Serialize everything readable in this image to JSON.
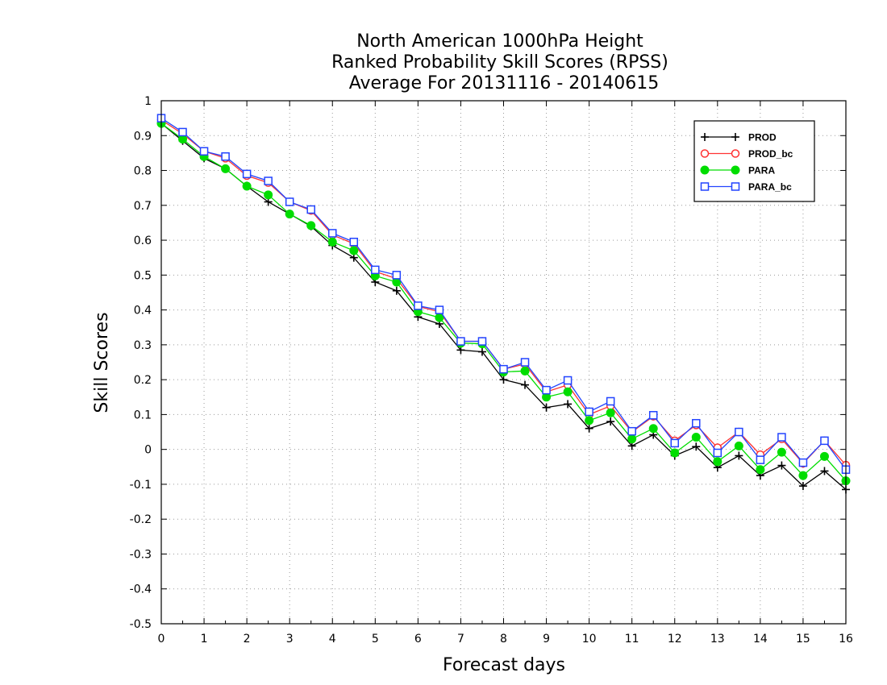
{
  "chart_data": {
    "type": "line",
    "title_lines": [
      "North American 1000hPa Height",
      "Ranked Probability Skill Scores (RPSS)",
      "Average For 20131116 - 20140615"
    ],
    "xlabel": "Forecast days",
    "ylabel": "Skill Scores",
    "xlim": [
      0,
      16
    ],
    "ylim": [
      -0.5,
      1
    ],
    "xticks": [
      0,
      1,
      2,
      3,
      4,
      5,
      6,
      7,
      8,
      9,
      10,
      11,
      12,
      13,
      14,
      15,
      16
    ],
    "yticks": [
      -0.5,
      -0.4,
      -0.3,
      -0.2,
      -0.1,
      0,
      0.1,
      0.2,
      0.3,
      0.4,
      0.5,
      0.6,
      0.7,
      0.8,
      0.9,
      1
    ],
    "ytick_labels": [
      "-0.5",
      "-0.4",
      "-0.3",
      "-0.2",
      "-0.1",
      "0",
      "0.1",
      "0.2",
      "0.3",
      "0.4",
      "0.5",
      "0.6",
      "0.7",
      "0.8",
      "0.9",
      "1"
    ],
    "grid": true,
    "legend_position": "top-right",
    "x": [
      0,
      0.5,
      1,
      1.5,
      2,
      2.5,
      3,
      3.5,
      4,
      4.5,
      5,
      5.5,
      6,
      6.5,
      7,
      7.5,
      8,
      8.5,
      9,
      9.5,
      10,
      10.5,
      11,
      11.5,
      12,
      12.5,
      13,
      13.5,
      14,
      14.5,
      15,
      15.5,
      16
    ],
    "series": [
      {
        "name": "PROD",
        "color": "#000000",
        "marker": "plus",
        "values": [
          0.935,
          0.885,
          0.835,
          0.805,
          0.755,
          0.71,
          0.675,
          0.64,
          0.585,
          0.55,
          0.48,
          0.455,
          0.38,
          0.36,
          0.285,
          0.28,
          0.2,
          0.185,
          0.12,
          0.13,
          0.06,
          0.08,
          0.01,
          0.042,
          -0.018,
          0.008,
          -0.052,
          -0.018,
          -0.075,
          -0.046,
          -0.105,
          -0.062,
          -0.115
        ]
      },
      {
        "name": "PROD_bc",
        "color": "#ff3333",
        "marker": "open-circle",
        "values": [
          0.945,
          0.905,
          0.855,
          0.835,
          0.785,
          0.765,
          0.71,
          0.685,
          0.615,
          0.59,
          0.51,
          0.49,
          0.41,
          0.395,
          0.31,
          0.31,
          0.23,
          0.245,
          0.165,
          0.185,
          0.1,
          0.125,
          0.05,
          0.095,
          0.025,
          0.07,
          0.005,
          0.05,
          -0.015,
          0.03,
          -0.04,
          0.025,
          -0.045
        ]
      },
      {
        "name": "PARA",
        "color": "#00dd00",
        "marker": "filled-circle",
        "values": [
          0.935,
          0.89,
          0.84,
          0.805,
          0.755,
          0.73,
          0.675,
          0.642,
          0.595,
          0.57,
          0.498,
          0.48,
          0.395,
          0.378,
          0.305,
          0.303,
          0.222,
          0.225,
          0.15,
          0.165,
          0.083,
          0.105,
          0.03,
          0.06,
          -0.01,
          0.035,
          -0.035,
          0.01,
          -0.058,
          -0.008,
          -0.075,
          -0.02,
          -0.09
        ]
      },
      {
        "name": "PARA_bc",
        "color": "#2244ff",
        "marker": "open-square",
        "values": [
          0.95,
          0.91,
          0.855,
          0.84,
          0.79,
          0.77,
          0.71,
          0.688,
          0.62,
          0.595,
          0.515,
          0.5,
          0.412,
          0.4,
          0.31,
          0.31,
          0.23,
          0.25,
          0.17,
          0.198,
          0.108,
          0.138,
          0.052,
          0.098,
          0.018,
          0.075,
          -0.01,
          0.05,
          -0.03,
          0.035,
          -0.038,
          0.025,
          -0.058
        ]
      }
    ]
  }
}
